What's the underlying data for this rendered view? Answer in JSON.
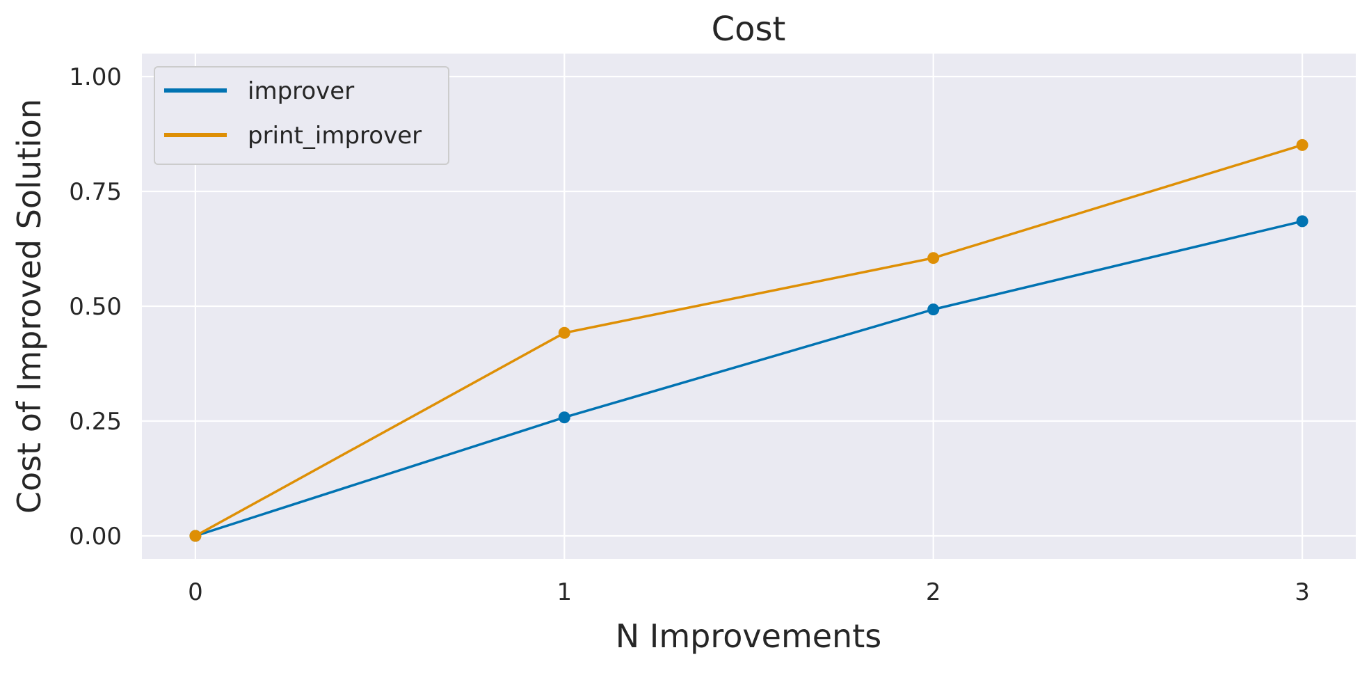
{
  "chart_data": {
    "type": "line",
    "title": "Cost",
    "xlabel": "N Improvements",
    "ylabel": "Cost of Improved Solution",
    "x": [
      0,
      1,
      2,
      3
    ],
    "xticks": [
      "0",
      "1",
      "2",
      "3"
    ],
    "yticks": [
      "0.00",
      "0.25",
      "0.50",
      "0.75",
      "1.00"
    ],
    "xlim": [
      -0.145,
      3.145
    ],
    "ylim": [
      -0.05,
      1.05
    ],
    "grid": true,
    "legend_position": "top-left",
    "series": [
      {
        "name": "improver",
        "color": "#0173b2",
        "values": [
          0.0,
          0.258,
          0.493,
          0.685
        ],
        "marker": "circle"
      },
      {
        "name": "print_improver",
        "color": "#de8f05",
        "values": [
          0.0,
          0.442,
          0.605,
          0.851
        ],
        "marker": "circle"
      }
    ]
  }
}
